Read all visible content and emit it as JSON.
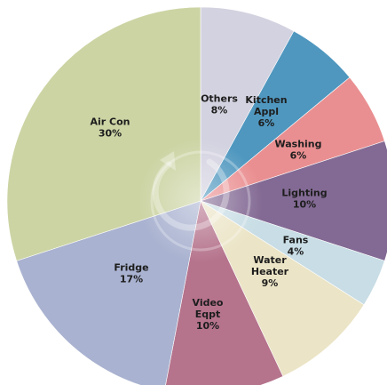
{
  "chart_data": {
    "type": "pie",
    "start_angle_deg": 0,
    "direction": "clockwise",
    "title": "",
    "slices": [
      {
        "lines": [
          "Others",
          "8%"
        ],
        "value": 8,
        "color": "#d3d2e0"
      },
      {
        "lines": [
          "Kitchen",
          "Appl",
          "6%"
        ],
        "value": 6,
        "color": "#4f97bf"
      },
      {
        "lines": [
          "Washing",
          "6%"
        ],
        "value": 6,
        "color": "#ea8f91"
      },
      {
        "lines": [
          "Lighting",
          "10%"
        ],
        "value": 10,
        "color": "#836a94"
      },
      {
        "lines": [
          "Fans",
          "4%"
        ],
        "value": 4,
        "color": "#c8dde5"
      },
      {
        "lines": [
          "Water",
          "Heater",
          "9%"
        ],
        "value": 9,
        "color": "#ebe4c6"
      },
      {
        "lines": [
          "Video",
          "Eqpt",
          "10%"
        ],
        "value": 10,
        "color": "#b5738c"
      },
      {
        "lines": [
          "Fridge",
          "17%"
        ],
        "value": 17,
        "color": "#a9b2d0"
      },
      {
        "lines": [
          "Air Con",
          "30%"
        ],
        "value": 30,
        "color": "#ccd4a4"
      }
    ]
  }
}
